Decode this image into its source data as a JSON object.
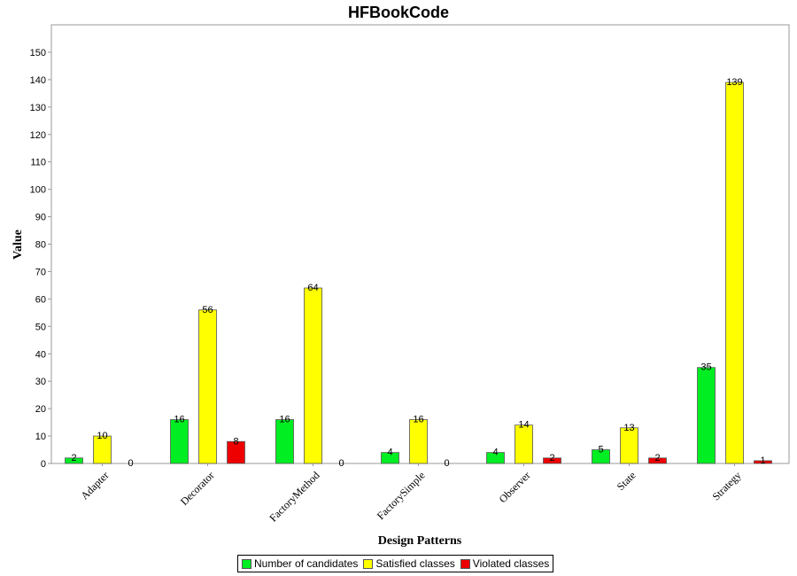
{
  "chart_data": {
    "type": "bar",
    "title": "HFBookCode",
    "xlabel": "Design Patterns",
    "ylabel": "Value",
    "ylim": [
      0,
      160
    ],
    "yticks": [
      0,
      10,
      20,
      30,
      40,
      50,
      60,
      70,
      80,
      90,
      100,
      110,
      120,
      130,
      140,
      150
    ],
    "categories": [
      "Adapter",
      "Decorator",
      "FactoryMethod",
      "FactorySimple",
      "Observer",
      "State",
      "Strategy"
    ],
    "series": [
      {
        "name": "Number of candidates",
        "color": "#00ee22",
        "values": [
          2,
          16,
          16,
          4,
          4,
          5,
          35
        ]
      },
      {
        "name": "Satisfied classes",
        "color": "#ffff00",
        "values": [
          10,
          56,
          64,
          16,
          14,
          13,
          139
        ]
      },
      {
        "name": "Violated classes",
        "color": "#ee0000",
        "values": [
          0,
          8,
          0,
          0,
          2,
          2,
          1
        ]
      }
    ],
    "grid": false,
    "legend_position": "bottom"
  }
}
